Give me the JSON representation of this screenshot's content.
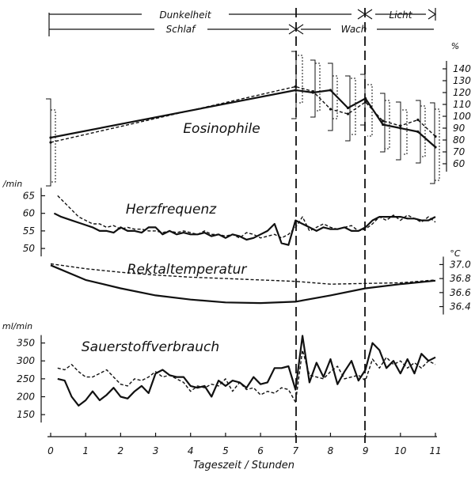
{
  "chart_data": {
    "type": "line",
    "top_bars": {
      "row1": {
        "dark_label": "Dunkelheit",
        "light_label": "Licht"
      },
      "row2": {
        "sleep_label": "Schlaf",
        "awake_label": "Wach"
      }
    },
    "x_axis": {
      "label": "Tageszeit / Stunden",
      "ticks": [
        "0",
        "1",
        "2",
        "3",
        "4",
        "5",
        "6",
        "7",
        "8",
        "9",
        "10",
        "11"
      ],
      "xlim": [
        0,
        11
      ],
      "markers": [
        7,
        9
      ]
    },
    "panels": [
      {
        "key": "eos",
        "title": "Eosinophile",
        "unit": "%",
        "ticks": [
          "60",
          "70",
          "80",
          "90",
          "100",
          "110",
          "120",
          "130",
          "140"
        ],
        "ylim": [
          50,
          150
        ],
        "series": [
          {
            "style": "solid",
            "x": [
              0,
              7,
              7.5,
              8,
              8.5,
              9,
              9.5,
              10,
              10.5,
              11
            ],
            "values": [
              82,
              122,
              120,
              122,
              107,
              115,
              93,
              90,
              87,
              74
            ]
          },
          {
            "style": "dashed",
            "x": [
              0,
              7,
              7.5,
              8,
              8.5,
              9,
              9.5,
              10,
              10.5,
              11
            ],
            "values": [
              78,
              125,
              121,
              106,
              102,
              112,
              96,
              92,
              97,
              83
            ]
          }
        ]
      },
      {
        "key": "hf",
        "title": "Herzfrequenz",
        "unit": "/min",
        "ticks": [
          "50",
          "55",
          "60",
          "65"
        ],
        "ylim": [
          48,
          66
        ],
        "series": [
          {
            "style": "solid",
            "x": [
              0.1,
              0.3,
              0.6,
              0.9,
              1.2,
              1.4,
              1.6,
              1.8,
              2.0,
              2.2,
              2.4,
              2.6,
              2.8,
              3.0,
              3.2,
              3.4,
              3.6,
              3.8,
              4.0,
              4.2,
              4.4,
              4.6,
              4.8,
              5.0,
              5.2,
              5.4,
              5.6,
              5.8,
              6.0,
              6.2,
              6.4,
              6.6,
              6.8,
              7.0,
              7.2,
              7.4,
              7.6,
              7.8,
              8.0,
              8.2,
              8.4,
              8.6,
              8.8,
              9.0,
              9.2,
              9.4,
              9.6,
              9.8,
              10.0,
              10.2,
              10.4,
              10.6,
              10.8,
              11.0
            ],
            "values": [
              60,
              59,
              58,
              57,
              56,
              55,
              55,
              54.5,
              56,
              55,
              55,
              54.5,
              56,
              56,
              54,
              55,
              54,
              54.5,
              54,
              54,
              54.5,
              53.5,
              54,
              53,
              54,
              53.5,
              52.5,
              53,
              54,
              55,
              57,
              51.5,
              51,
              58,
              57,
              56,
              55,
              56,
              55.5,
              55.5,
              56,
              55,
              55,
              56,
              58,
              59,
              59,
              59,
              59,
              58.5,
              58.5,
              58,
              58,
              59
            ]
          },
          {
            "style": "dashed",
            "x": [
              0.2,
              0.4,
              0.6,
              0.8,
              1.0,
              1.2,
              1.4,
              1.6,
              1.8,
              2.0,
              2.2,
              2.4,
              2.6,
              2.8,
              3.0,
              3.2,
              3.4,
              3.6,
              3.8,
              4.0,
              4.2,
              4.4,
              4.6,
              4.8,
              5.0,
              5.2,
              5.4,
              5.6,
              5.8,
              6.0,
              6.2,
              6.4,
              6.6,
              6.8,
              7.0,
              7.2,
              7.4,
              7.6,
              7.8,
              8.0,
              8.2,
              8.4,
              8.6,
              8.8,
              9.0,
              9.2,
              9.4,
              9.6,
              9.8,
              10.0,
              10.2,
              10.4,
              10.6,
              10.8,
              11.0
            ],
            "values": [
              65,
              63,
              61,
              59,
              58,
              57,
              57,
              56,
              56.5,
              55.5,
              56,
              55.5,
              55.5,
              55,
              55,
              54.5,
              55,
              54.5,
              55,
              54.5,
              54,
              55,
              54,
              54,
              53.5,
              54,
              53,
              54.5,
              54,
              53,
              53.5,
              54,
              53,
              54,
              56,
              59,
              55,
              56,
              57,
              56,
              55.5,
              56,
              56.5,
              55,
              55.5,
              57,
              59,
              58,
              59.5,
              58,
              59.5,
              58.5,
              57.5,
              59,
              57.5
            ]
          }
        ]
      },
      {
        "key": "rt",
        "title": "Rektaltemperatur",
        "unit": "°C",
        "ticks": [
          "36.4",
          "36.6",
          "36.8",
          "37.0"
        ],
        "ylim": [
          36.35,
          37.05
        ],
        "series": [
          {
            "style": "solid",
            "x": [
              0,
              1,
              2,
              3,
              4,
              5,
              6,
              7,
              8,
              9,
              10,
              11
            ],
            "values": [
              36.99,
              36.78,
              36.66,
              36.56,
              36.5,
              36.46,
              36.45,
              36.47,
              36.56,
              36.66,
              36.72,
              36.77
            ]
          },
          {
            "style": "dashed",
            "x": [
              0,
              1,
              2,
              3,
              4,
              5,
              6,
              7,
              8,
              9,
              10,
              11
            ],
            "values": [
              37.01,
              36.94,
              36.89,
              36.85,
              36.82,
              36.8,
              36.78,
              36.76,
              36.72,
              36.73,
              36.74,
              36.78
            ]
          }
        ]
      },
      {
        "key": "o2",
        "title": "Sauerstoffverbrauch",
        "unit": "ml/min",
        "ticks": [
          "150",
          "200",
          "250",
          "300",
          "350"
        ],
        "ylim": [
          115,
          380
        ],
        "series": [
          {
            "style": "solid",
            "x": [
              0.2,
              0.4,
              0.6,
              0.8,
              1.0,
              1.2,
              1.4,
              1.6,
              1.8,
              2.0,
              2.2,
              2.4,
              2.6,
              2.8,
              3.0,
              3.2,
              3.4,
              3.6,
              3.8,
              4.0,
              4.2,
              4.4,
              4.6,
              4.8,
              5.0,
              5.2,
              5.4,
              5.6,
              5.8,
              6.0,
              6.2,
              6.4,
              6.6,
              6.8,
              7.0,
              7.2,
              7.4,
              7.6,
              7.8,
              8.0,
              8.2,
              8.4,
              8.6,
              8.8,
              9.0,
              9.2,
              9.4,
              9.6,
              9.8,
              10.0,
              10.2,
              10.4,
              10.6,
              10.8,
              11.0
            ],
            "values": [
              250,
              245,
              200,
              175,
              190,
              215,
              190,
              205,
              225,
              200,
              195,
              215,
              230,
              210,
              265,
              275,
              260,
              255,
              255,
              230,
              225,
              230,
              200,
              245,
              230,
              245,
              240,
              225,
              255,
              235,
              240,
              280,
              280,
              285,
              220,
              370,
              240,
              295,
              255,
              305,
              235,
              270,
              300,
              245,
              275,
              350,
              330,
              280,
              300,
              265,
              305,
              265,
              320,
              300,
              310
            ]
          },
          {
            "style": "dashed",
            "x": [
              0.2,
              0.4,
              0.6,
              0.8,
              1.0,
              1.2,
              1.4,
              1.6,
              1.8,
              2.0,
              2.2,
              2.4,
              2.6,
              2.8,
              3.0,
              3.2,
              3.4,
              3.6,
              3.8,
              4.0,
              4.2,
              4.4,
              4.6,
              4.8,
              5.0,
              5.2,
              5.4,
              5.6,
              5.8,
              6.0,
              6.2,
              6.4,
              6.6,
              6.8,
              7.0,
              7.2,
              7.4,
              7.6,
              7.8,
              8.0,
              8.2,
              8.4,
              8.6,
              8.8,
              9.0,
              9.2,
              9.4,
              9.6,
              9.8,
              10.0,
              10.2,
              10.4,
              10.6,
              10.8,
              11.0
            ],
            "values": [
              280,
              275,
              290,
              270,
              255,
              255,
              265,
              275,
              255,
              235,
              230,
              250,
              245,
              255,
              270,
              255,
              260,
              250,
              240,
              215,
              230,
              225,
              235,
              230,
              250,
              215,
              240,
              220,
              225,
              205,
              215,
              210,
              225,
              220,
              185,
              330,
              260,
              255,
              250,
              270,
              285,
              250,
              255,
              260,
              245,
              305,
              280,
              310,
              290,
              300,
              280,
              295,
              280,
              300,
              290
            ]
          }
        ]
      }
    ]
  }
}
